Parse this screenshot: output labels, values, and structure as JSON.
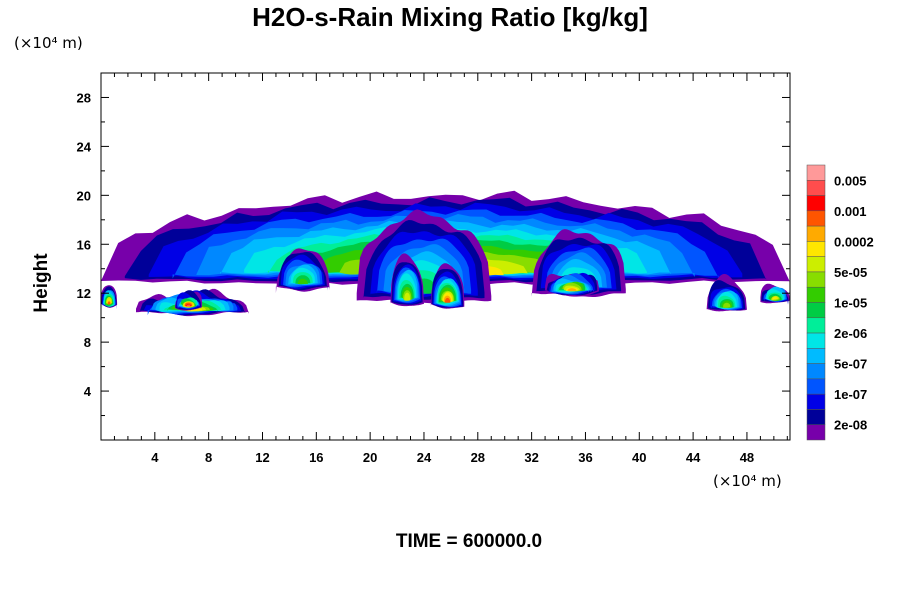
{
  "chart_data": {
    "type": "heatmap",
    "title": "H2O-s-Rain Mixing Ratio [kg/kg]",
    "ylabel": "Height",
    "xlabel": "",
    "y_unit": "(×10⁴ m)",
    "x_unit": "(×10⁴ m)",
    "footer": "TIME = 600000.0",
    "xlim": [
      0,
      51.2
    ],
    "ylim": [
      0,
      30
    ],
    "x_ticks": [
      "4",
      "8",
      "12",
      "16",
      "20",
      "24",
      "28",
      "32",
      "36",
      "40",
      "44",
      "48"
    ],
    "y_ticks": [
      "4",
      "8",
      "12",
      "16",
      "20",
      "24",
      "28"
    ],
    "colorbar": {
      "labels": [
        "0.005",
        "0.001",
        "0.0002",
        "5e-05",
        "1e-05",
        "2e-06",
        "5e-07",
        "1e-07",
        "2e-08"
      ],
      "colors": [
        "#ff9999",
        "#ff4d4d",
        "#ff0000",
        "#ff5500",
        "#ffaa00",
        "#ffe600",
        "#ccee00",
        "#88dd00",
        "#33cc00",
        "#00cc44",
        "#00ee99",
        "#00e6e6",
        "#00bbff",
        "#0088ff",
        "#0055ff",
        "#0000e6",
        "#000099",
        "#7700aa"
      ]
    },
    "clouds": [
      {
        "x0": 0,
        "x1": 51.2,
        "ytop_min": 14,
        "ytop_max": 20,
        "ybot": 13,
        "level": 12
      },
      {
        "x0": 0,
        "x1": 1.2,
        "ytop_min": 12.3,
        "ytop_max": 12.5,
        "ybot": 11,
        "level": 14
      },
      {
        "x0": 2.6,
        "x1": 11,
        "ytop_min": 11.7,
        "ytop_max": 12,
        "ybot": 10.5,
        "level": 12
      },
      {
        "x0": 5.5,
        "x1": 7.5,
        "ytop_min": 11.5,
        "ytop_max": 11.8,
        "ybot": 10.9,
        "level": 16
      },
      {
        "x0": 13,
        "x1": 17,
        "ytop_min": 15,
        "ytop_max": 15.5,
        "ybot": 12.5,
        "level": 9
      },
      {
        "x0": 19,
        "x1": 29,
        "ytop_min": 17,
        "ytop_max": 18.5,
        "ybot": 11.5,
        "level": 8
      },
      {
        "x0": 21.5,
        "x1": 24,
        "ytop_min": 14.5,
        "ytop_max": 15,
        "ybot": 11.2,
        "level": 11
      },
      {
        "x0": 24.5,
        "x1": 27,
        "ytop_min": 13.7,
        "ytop_max": 14,
        "ybot": 11.0,
        "level": 14
      },
      {
        "x0": 32,
        "x1": 39,
        "ytop_min": 16,
        "ytop_max": 17,
        "ybot": 12,
        "level": 8
      },
      {
        "x0": 33,
        "x1": 37,
        "ytop_min": 13.3,
        "ytop_max": 13.6,
        "ybot": 12.1,
        "level": 13
      },
      {
        "x0": 45,
        "x1": 48,
        "ytop_min": 12.5,
        "ytop_max": 13,
        "ybot": 10.7,
        "level": 10
      },
      {
        "x0": 49,
        "x1": 51.2,
        "ytop_min": 12.3,
        "ytop_max": 12.6,
        "ybot": 11.4,
        "level": 12
      }
    ]
  }
}
